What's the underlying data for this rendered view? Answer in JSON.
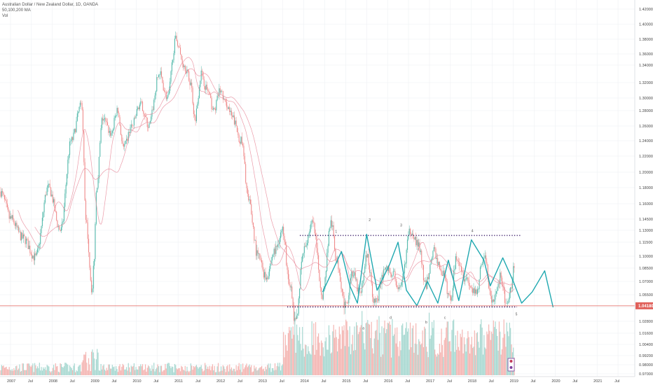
{
  "header": {
    "symbol_title": "Australian Dollar / New Zealand Dollar, 1D, OANDA",
    "ma_label": "50,100,200 MA",
    "vol_label": "Vol"
  },
  "price_badge": "1.04180",
  "colors": {
    "background": "#ffffff",
    "grid": "#eef0f3",
    "candle_up": "#53b9ab",
    "candle_down": "#ef8a8a",
    "ma_line": "#e88a9a",
    "channel_dots": "#3d1f6b",
    "wave_curve": "#1fa8b0",
    "price_line": "#e0605a",
    "vol_up": "#a9d9d2",
    "vol_down": "#f4b6b3"
  },
  "chart_data": {
    "type": "line",
    "series": [
      {
        "x": [
          2006.75,
          2007.0,
          2007.3,
          2007.6,
          2007.9,
          2008.2,
          2008.45,
          2008.7,
          2008.8,
          2008.95,
          2009.0,
          2009.05,
          2009.2,
          2009.4,
          2009.55,
          2009.7,
          2009.9,
          2010.1,
          2010.3,
          2010.55,
          2010.75,
          2010.95,
          2011.15,
          2011.3,
          2011.4,
          2011.55,
          2011.7,
          2011.85,
          2012.0,
          2012.15,
          2012.3,
          2012.5,
          2012.7,
          2012.9,
          2013.1,
          2013.3,
          2013.5,
          2013.65,
          2013.8,
          2014.0,
          2014.2,
          2014.45,
          2014.65,
          2014.8,
          2015.0,
          2015.15,
          2015.35,
          2015.5,
          2015.7,
          2015.95,
          2016.1,
          2016.3,
          2016.55,
          2016.75,
          2016.9,
          2017.1,
          2017.3,
          2017.5,
          2017.65,
          2017.85,
          2018.1,
          2018.3,
          2018.5,
          2018.7,
          2018.85,
          2019.05,
          2019.25,
          2019.45,
          2019.6,
          2019.75,
          2019.95
        ],
        "y": [
          1.175,
          1.145,
          1.12,
          1.098,
          1.18,
          1.13,
          1.24,
          1.29,
          1.14,
          1.06,
          1.1,
          1.18,
          1.27,
          1.25,
          1.28,
          1.23,
          1.26,
          1.29,
          1.26,
          1.33,
          1.3,
          1.38,
          1.34,
          1.32,
          1.27,
          1.33,
          1.31,
          1.28,
          1.31,
          1.29,
          1.27,
          1.24,
          1.16,
          1.1,
          1.075,
          1.105,
          1.13,
          1.07,
          1.025,
          1.105,
          1.14,
          1.055,
          1.14,
          1.09,
          1.04,
          1.08,
          1.055,
          1.1,
          1.045,
          1.085,
          1.08,
          1.06,
          1.13,
          1.11,
          1.065,
          1.105,
          1.08,
          1.05,
          1.1,
          1.075,
          1.055,
          1.1,
          1.045,
          1.075,
          1.04,
          1.09,
          1.05,
          1.045,
          1.09,
          1.06,
          1.04
        ]
      }
    ],
    "price_scale": [
      "1.42000",
      "1.40000",
      "1.38000",
      "1.36000",
      "1.34000",
      "1.32000",
      "1.30000",
      "1.28000",
      "1.26000",
      "1.24000",
      "1.22000",
      "1.20000",
      "1.18000",
      "1.16000",
      "1.14500",
      "1.13000",
      "1.11500",
      "1.10000",
      "1.08500",
      "1.07000",
      "1.05500",
      "1.04000",
      "1.02800",
      "1.01600",
      "1.00400",
      "0.99200",
      "0.98000",
      "0.97000"
    ],
    "time_scale": [
      "2007",
      "Jul",
      "2008",
      "Jul",
      "2009",
      "Jul",
      "2010",
      "Jul",
      "2011",
      "Jul",
      "2012",
      "Jul",
      "2013",
      "Jul",
      "2014",
      "Jul",
      "2015",
      "Jul",
      "2016",
      "Jul",
      "2017",
      "Jul",
      "2018",
      "Jul",
      "2019",
      "Jul",
      "2020",
      "Jul",
      "2021",
      "Jul"
    ],
    "wave_labels": [
      "1",
      "2",
      "3",
      "4",
      "5",
      "a",
      "b",
      "c",
      "d"
    ],
    "channel": {
      "resistance": 1.1235,
      "support": 1.0405,
      "start": 2014.55,
      "end": 2020.2
    },
    "last_price": 1.0418,
    "x_range": [
      2006.75,
      2021.9
    ],
    "ylim_price": [
      1.0,
      1.44
    ],
    "grid": true,
    "legend_position": "top-left"
  }
}
